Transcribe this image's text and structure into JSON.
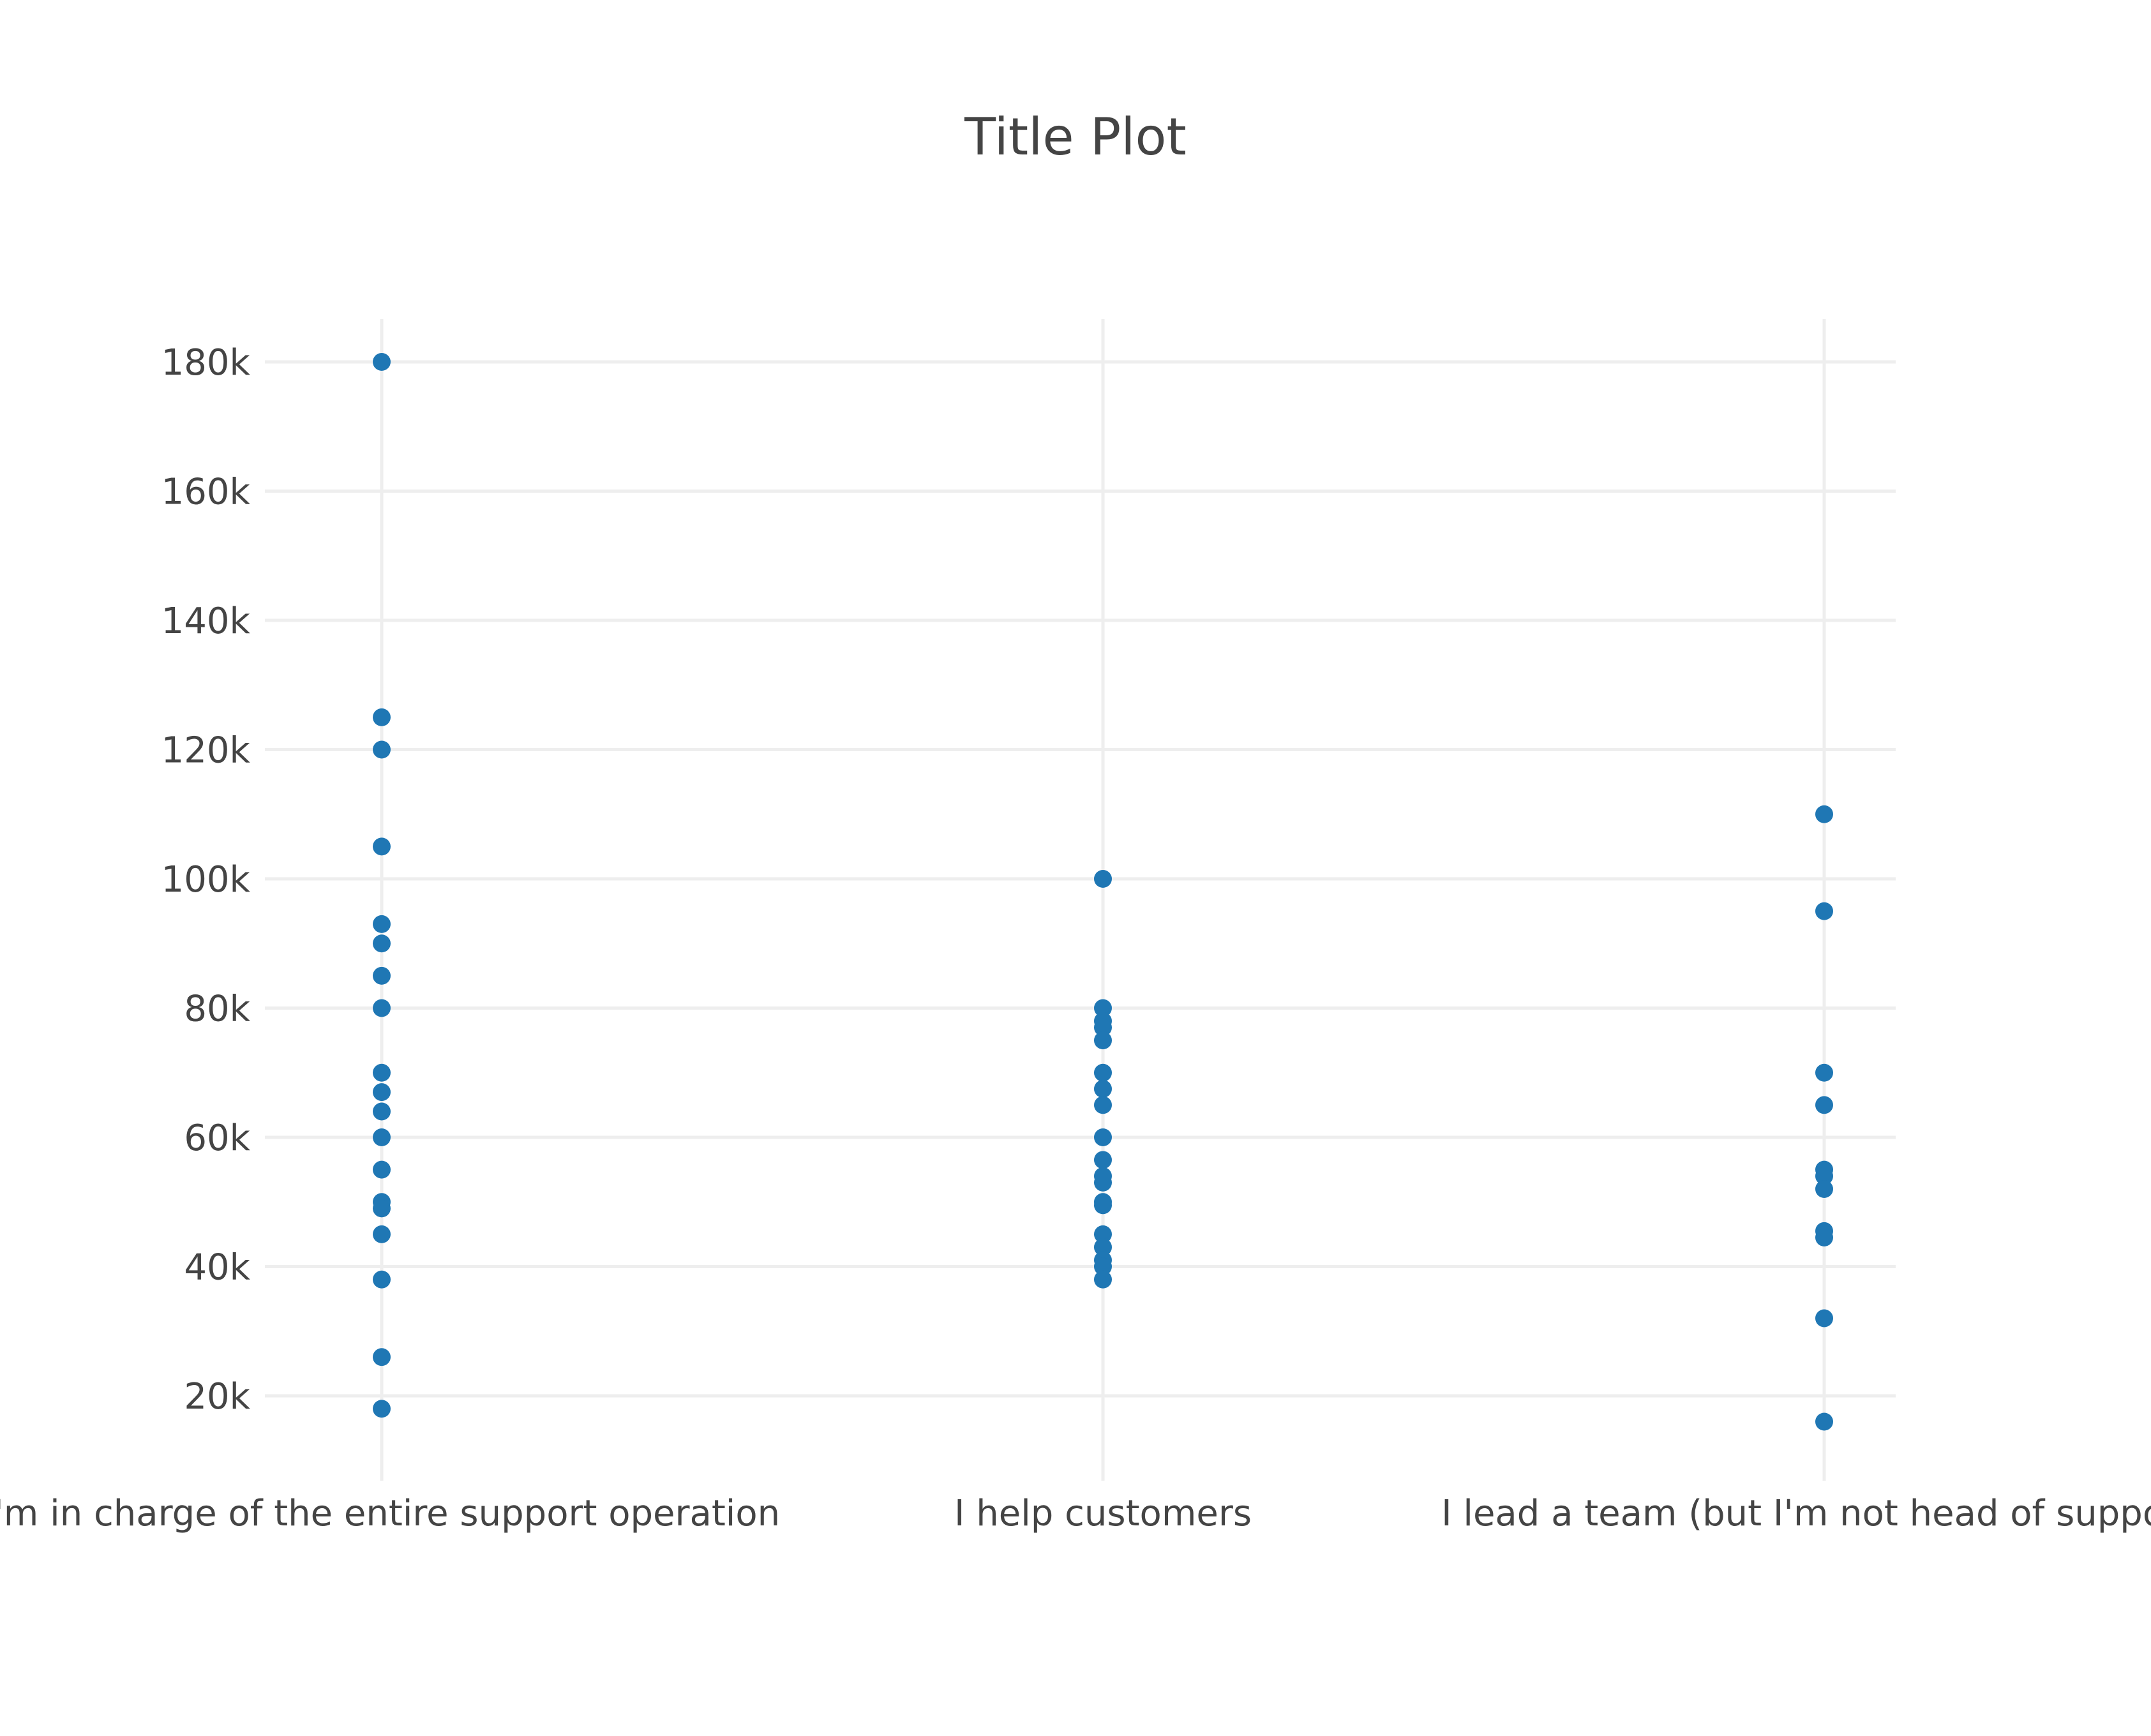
{
  "chart_data": {
    "type": "scatter",
    "title": "Title Plot",
    "xlabel": "",
    "ylabel": "",
    "categories": [
      "I'm in charge of the entire support operation",
      "I help customers",
      "I lead a team (but I'm not head of support)"
    ],
    "y_ticks": [
      20000,
      40000,
      60000,
      80000,
      100000,
      120000,
      140000,
      160000,
      180000
    ],
    "y_tick_labels": [
      "20k",
      "40k",
      "60k",
      "80k",
      "100k",
      "120k",
      "140k",
      "160k",
      "180k"
    ],
    "ylim": [
      10000,
      187000
    ],
    "grid": true,
    "marker_color": "#1f77b4",
    "series": [
      {
        "name": "I'm in charge of the entire support operation",
        "values": [
          180000,
          125000,
          120000,
          105000,
          93000,
          90000,
          85000,
          80000,
          70000,
          67000,
          64000,
          60000,
          55000,
          50000,
          49000,
          45000,
          38000,
          26000,
          18000
        ]
      },
      {
        "name": "I help customers",
        "values": [
          100000,
          80000,
          78000,
          77000,
          75000,
          70000,
          67500,
          65000,
          60000,
          56500,
          54000,
          53000,
          50000,
          49500,
          45000,
          43000,
          41000,
          40000,
          38000
        ]
      },
      {
        "name": "I lead a team (but I'm not head of support)",
        "values": [
          110000,
          95000,
          70000,
          65000,
          55000,
          54000,
          52000,
          45500,
          44500,
          32000,
          16000
        ]
      }
    ]
  }
}
